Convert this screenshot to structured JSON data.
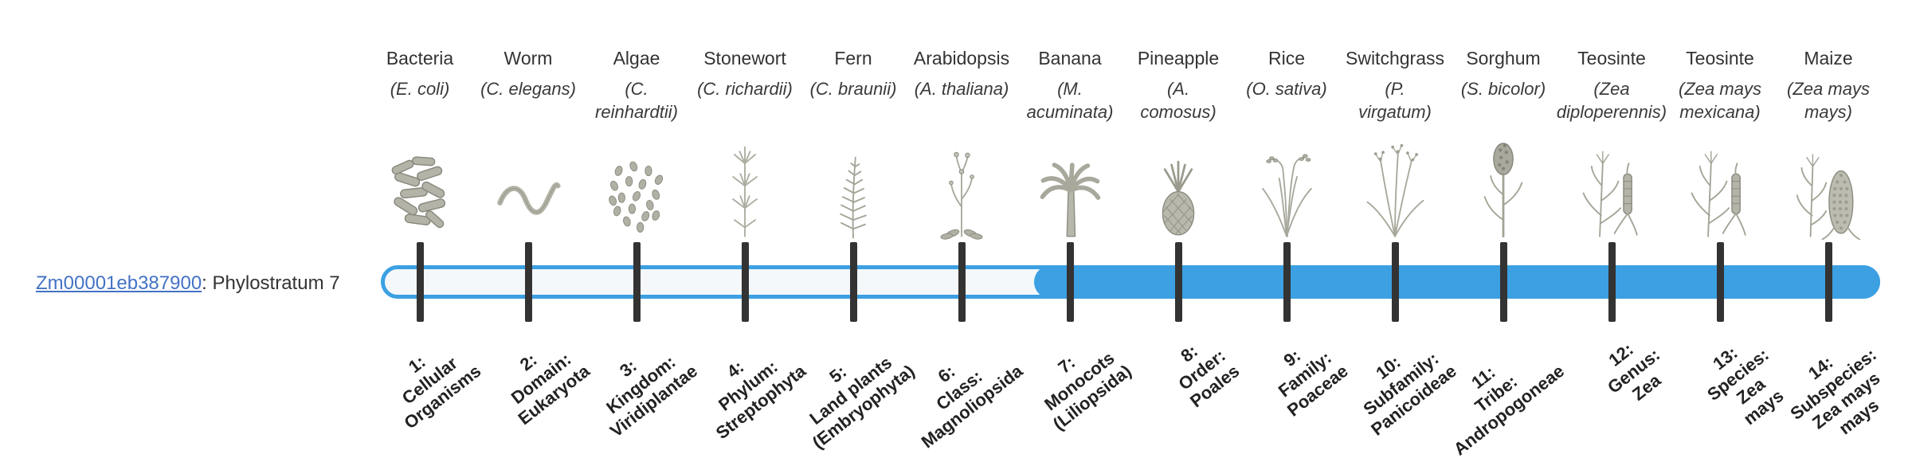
{
  "colors": {
    "bar_blue": "#3ca0e2",
    "bar_track": "#f4f8fb",
    "tick": "#333333",
    "link_blue": "#4472c4",
    "text": "#333333"
  },
  "gene": {
    "id": "Zm00001eb387900",
    "label_suffix": ": Phylostratum 7",
    "phylostratum": 7
  },
  "bar": {
    "total_strata": 14,
    "filled_from_stratum": 7
  },
  "columns": [
    {
      "common": "Bacteria",
      "sci": "(E. coli)",
      "icon": "bacteria",
      "stratum": "1:\nCellular\nOrganisms"
    },
    {
      "common": "Worm",
      "sci": "(C. elegans)",
      "icon": "worm",
      "stratum": "2:\nDomain:\nEukaryota"
    },
    {
      "common": "Algae",
      "sci": "(C.\nreinhardtii)",
      "icon": "algae",
      "stratum": "3:\nKingdom:\nViridiplantae"
    },
    {
      "common": "Stonewort",
      "sci": "(C. richardii)",
      "icon": "stonewort",
      "stratum": "4:\nPhylum:\nStreptophyta"
    },
    {
      "common": "Fern",
      "sci": "(C. braunii)",
      "icon": "fern",
      "stratum": "5:\nLand plants\n(Embryophyta)"
    },
    {
      "common": "Arabidopsis",
      "sci": "(A. thaliana)",
      "icon": "arabidopsis",
      "stratum": "6:\nClass:\nMagnoliopsida"
    },
    {
      "common": "Banana",
      "sci": "(M.\nacuminata)",
      "icon": "banana",
      "stratum": "7:\nMonocots\n(Liliopsida)"
    },
    {
      "common": "Pineapple",
      "sci": "(A.\ncomosus)",
      "icon": "pineapple",
      "stratum": "8:\nOrder:\nPoales"
    },
    {
      "common": "Rice",
      "sci": "(O. sativa)",
      "icon": "rice",
      "stratum": "9:\nFamily:\nPoaceae"
    },
    {
      "common": "Switchgrass",
      "sci": "(P.\nvirgatum)",
      "icon": "switchgrass",
      "stratum": "10:\nSubfamily:\nPanicoideae"
    },
    {
      "common": "Sorghum",
      "sci": "(S. bicolor)",
      "icon": "sorghum",
      "stratum": "11:\nTribe:\nAndropogoneae"
    },
    {
      "common": "Teosinte",
      "sci": "(Zea\ndiploperennis)",
      "icon": "teosinte",
      "stratum": "12:\nGenus:\nZea"
    },
    {
      "common": "Teosinte",
      "sci": "(Zea mays\nmexicana)",
      "icon": "teosinte",
      "stratum": "13:\nSpecies:\nZea\nmays"
    },
    {
      "common": "Maize",
      "sci": "(Zea mays\nmays)",
      "icon": "maize",
      "stratum": "14:\nSubspecies:\nZea mays\nmays"
    }
  ]
}
